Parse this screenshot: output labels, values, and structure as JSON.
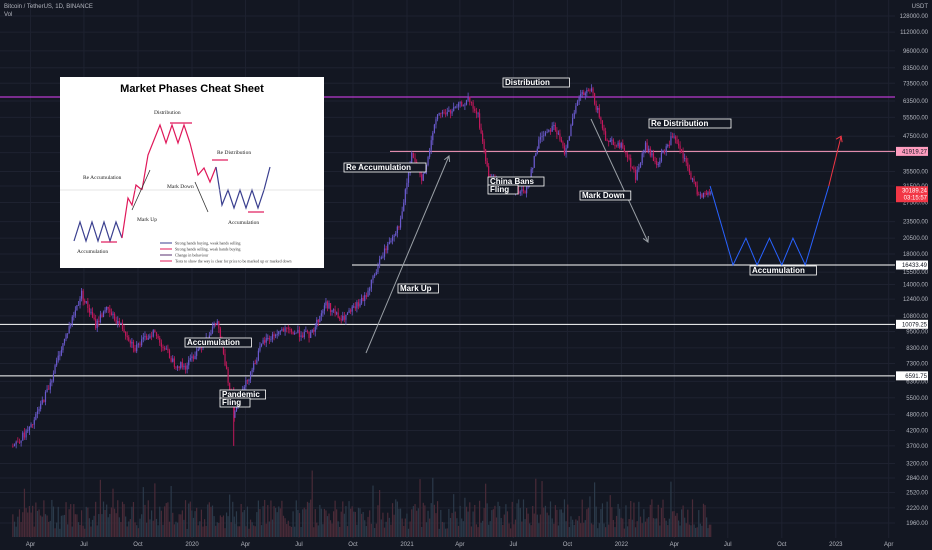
{
  "header": {
    "symbol_line": "Bitcoin / TetherUS, 1D, BINANCE",
    "vol_label": "Vol"
  },
  "axis": {
    "currency": "USDT",
    "y_ticks": [
      "128000.00",
      "112000.00",
      "96000.00",
      "83500.00",
      "73500.00",
      "63500.00",
      "55500.00",
      "47500.00",
      "41500.00",
      "35500.00",
      "31500.00",
      "27500.00",
      "23500.00",
      "20500.00",
      "18000.00",
      "15500.00",
      "14000.00",
      "12400.00",
      "10800.00",
      "9500.00",
      "8300.00",
      "7300.00",
      "6300.00",
      "5500.00",
      "4800.00",
      "4200.00",
      "3700.00",
      "3200.00",
      "2840.00",
      "2520.00",
      "2220.00",
      "1960.00"
    ],
    "x_ticks": [
      "Apr",
      "Jul",
      "Oct",
      "2020",
      "Apr",
      "Jul",
      "Oct",
      "2021",
      "Apr",
      "Jul",
      "Oct",
      "2022",
      "Apr",
      "Jul",
      "Oct",
      "2023",
      "Apr"
    ]
  },
  "levels": [
    {
      "value": "41919.27",
      "color": "#ff9ec0",
      "text_color": "#131722"
    },
    {
      "value": "16433.49",
      "color": "#ffffff",
      "text_color": "#131722"
    },
    {
      "value": "10079.25",
      "color": "#ffffff",
      "text_color": "#131722"
    },
    {
      "value": "6591.75",
      "color": "#ffffff",
      "text_color": "#131722"
    }
  ],
  "price_tag": {
    "price": "30189.24",
    "countdown": "03:15:57",
    "color": "#f23645"
  },
  "annotations": [
    "Distribution",
    "Re Accumulation",
    "Re Distribution",
    "China Bans",
    "Fling",
    "Mark Down",
    "Accumulation",
    "Mark Up",
    "Accumulation",
    "Pandemic",
    "Fling"
  ],
  "cheat_sheet": {
    "title": "Market Phases Cheat Sheet",
    "labels": [
      "Distribution",
      "Re Distribution",
      "Re Accumulation",
      "Mark Down",
      "Mark Up",
      "Accumulation",
      "Accumulation"
    ],
    "legend": [
      {
        "color": "#3a3f8f",
        "text": "Strong hands buying, weak hands selling"
      },
      {
        "color": "#e0185a",
        "text": "Strong hands selling, weak hands buying"
      },
      {
        "color": "#5a3070",
        "text": "Change in behaviour"
      },
      {
        "color": "#e0185a",
        "text": "Tests to show the way is clear for price to be marked up or marked down"
      }
    ]
  },
  "chart_data": {
    "type": "line",
    "title": "Bitcoin / TetherUS, 1D, BINANCE",
    "ylabel": "USDT",
    "scale": "log",
    "series": [
      {
        "points": [
          [
            "2019-03-01",
            3700
          ],
          [
            "2019-04-01",
            4300
          ],
          [
            "2019-05-01",
            6000
          ],
          [
            "2019-05-20",
            8000
          ],
          [
            "2019-06-26",
            13000
          ],
          [
            "2019-07-20",
            10000
          ],
          [
            "2019-08-05",
            11500
          ],
          [
            "2019-09-01",
            10000
          ],
          [
            "2019-09-25",
            8300
          ],
          [
            "2019-10-26",
            9500
          ],
          [
            "2019-12-01",
            7300
          ],
          [
            "2019-12-20",
            7100
          ],
          [
            "2020-02-12",
            10300
          ],
          [
            "2020-03-12",
            4800
          ],
          [
            "2020-03-13",
            5000
          ],
          [
            "2020-04-30",
            8700
          ],
          [
            "2020-06-01",
            9600
          ],
          [
            "2020-07-20",
            9200
          ],
          [
            "2020-08-15",
            12000
          ],
          [
            "2020-09-10",
            10400
          ],
          [
            "2020-10-20",
            12500
          ],
          [
            "2020-11-20",
            18000
          ],
          [
            "2020-12-20",
            23500
          ],
          [
            "2021-01-08",
            41000
          ],
          [
            "2021-01-25",
            32500
          ],
          [
            "2021-02-21",
            57000
          ],
          [
            "2021-03-15",
            58000
          ],
          [
            "2021-04-14",
            64000
          ],
          [
            "2021-05-01",
            56000
          ],
          [
            "2021-05-19",
            34000
          ],
          [
            "2021-06-20",
            31500
          ],
          [
            "2021-07-20",
            29800
          ],
          [
            "2021-08-15",
            47500
          ],
          [
            "2021-09-07",
            52000
          ],
          [
            "2021-09-25",
            42000
          ],
          [
            "2021-10-20",
            66000
          ],
          [
            "2021-11-10",
            69000
          ],
          [
            "2021-12-04",
            47000
          ],
          [
            "2022-01-05",
            43000
          ],
          [
            "2022-01-24",
            34000
          ],
          [
            "2022-02-10",
            44000
          ],
          [
            "2022-03-01",
            37500
          ],
          [
            "2022-03-28",
            47500
          ],
          [
            "2022-04-15",
            40000
          ],
          [
            "2022-05-09",
            30000
          ],
          [
            "2022-05-25",
            29000
          ],
          [
            "2022-06-01",
            30189
          ]
        ]
      },
      {
        "points": [
          [
            "2022-06-01",
            31500
          ],
          [
            "2022-07-10",
            16433
          ],
          [
            "2022-08-01",
            20500
          ],
          [
            "2022-08-20",
            16433
          ],
          [
            "2022-09-10",
            20500
          ],
          [
            "2022-10-01",
            16433
          ],
          [
            "2022-10-20",
            20500
          ],
          [
            "2022-11-10",
            16433
          ],
          [
            "2022-12-20",
            31500
          ]
        ]
      },
      {
        "points": [
          [
            "2022-12-20",
            31500
          ],
          [
            "2023-01-10",
            47500
          ]
        ]
      }
    ]
  }
}
